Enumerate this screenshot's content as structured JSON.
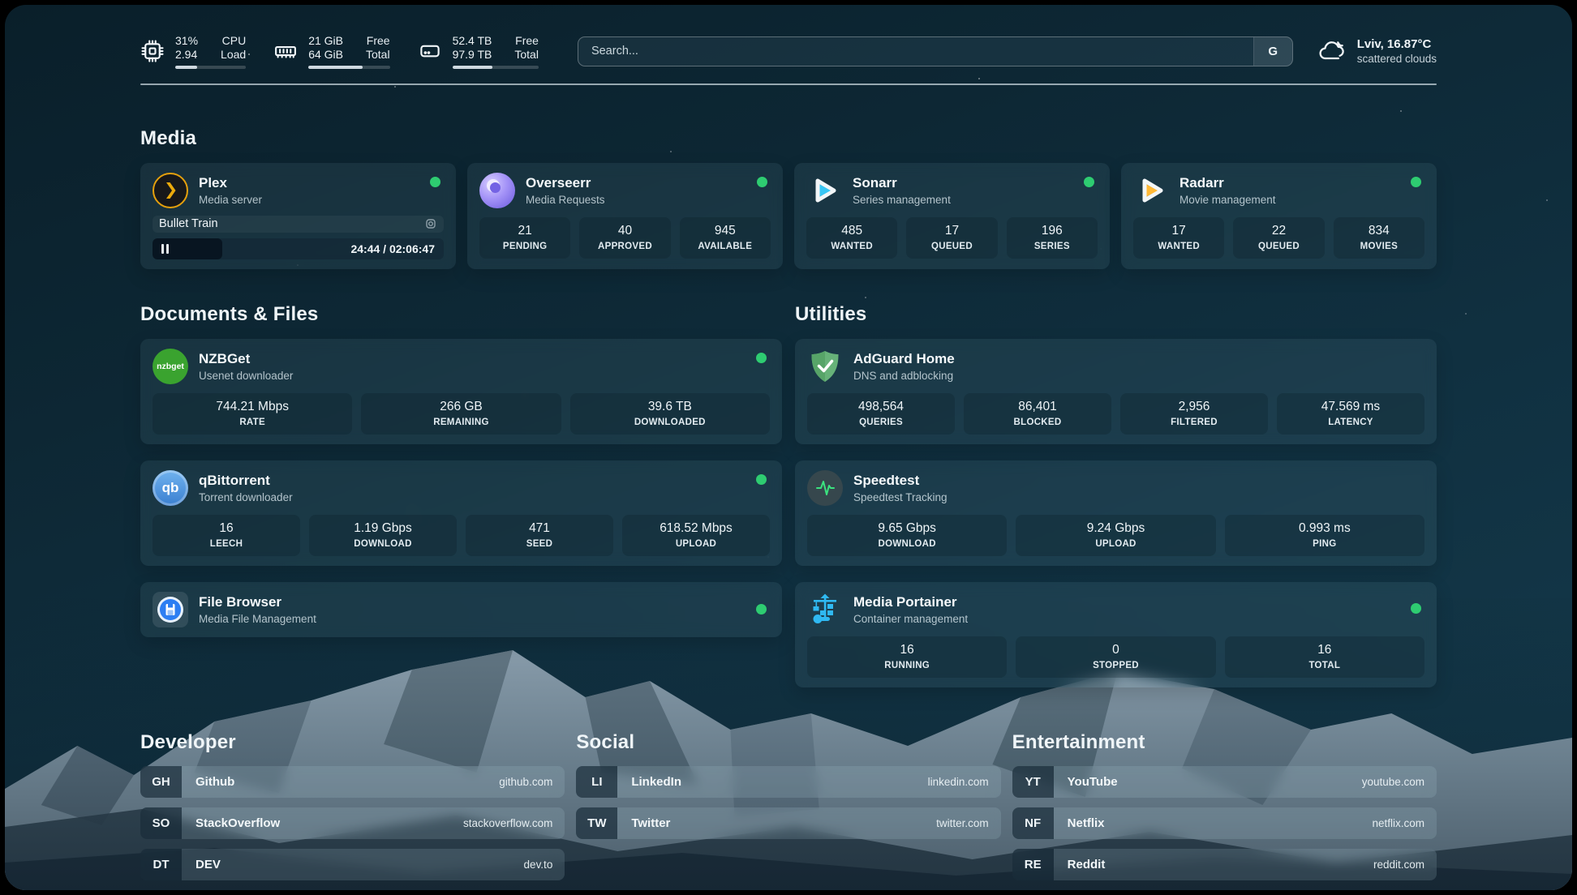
{
  "header": {
    "stats": [
      {
        "icon": "cpu-icon",
        "value1": "31%",
        "value2": "2.94",
        "label1": "CPU",
        "label2": "Load",
        "progress_pct": 31
      },
      {
        "icon": "memory-icon",
        "value1": "21 GiB",
        "value2": "64 GiB",
        "label1": "Free",
        "label2": "Total",
        "progress_pct": 67
      },
      {
        "icon": "disk-icon",
        "value1": "52.4 TB",
        "value2": "97.9 TB",
        "label1": "Free",
        "label2": "Total",
        "progress_pct": 46
      }
    ],
    "search": {
      "placeholder": "Search...",
      "engine_button": "G"
    },
    "weather": {
      "location_temp": "Lviv, 16.87°C",
      "condition": "scattered clouds"
    }
  },
  "colors": {
    "status_online": "#2ecc71",
    "accent_plex": "#e5a00d"
  },
  "sections": {
    "media": {
      "title": "Media",
      "apps": [
        {
          "name": "Plex",
          "description": "Media server",
          "status": "online",
          "now_playing": {
            "title": "Bullet Train",
            "state": "paused",
            "time": "24:44 / 02:06:47"
          }
        },
        {
          "name": "Overseerr",
          "description": "Media Requests",
          "status": "online",
          "stats": [
            {
              "value": "21",
              "label": "PENDING"
            },
            {
              "value": "40",
              "label": "APPROVED"
            },
            {
              "value": "945",
              "label": "AVAILABLE"
            }
          ]
        },
        {
          "name": "Sonarr",
          "description": "Series management",
          "status": "online",
          "stats": [
            {
              "value": "485",
              "label": "WANTED"
            },
            {
              "value": "17",
              "label": "QUEUED"
            },
            {
              "value": "196",
              "label": "SERIES"
            }
          ]
        },
        {
          "name": "Radarr",
          "description": "Movie management",
          "status": "online",
          "stats": [
            {
              "value": "17",
              "label": "WANTED"
            },
            {
              "value": "22",
              "label": "QUEUED"
            },
            {
              "value": "834",
              "label": "MOVIES"
            }
          ]
        }
      ]
    },
    "documents": {
      "title": "Documents & Files",
      "apps": [
        {
          "name": "NZBGet",
          "description": "Usenet downloader",
          "status": "online",
          "stats": [
            {
              "value": "744.21 Mbps",
              "label": "RATE"
            },
            {
              "value": "266 GB",
              "label": "REMAINING"
            },
            {
              "value": "39.6 TB",
              "label": "DOWNLOADED"
            }
          ]
        },
        {
          "name": "qBittorrent",
          "description": "Torrent downloader",
          "status": "online",
          "stats": [
            {
              "value": "16",
              "label": "LEECH"
            },
            {
              "value": "1.19 Gbps",
              "label": "DOWNLOAD"
            },
            {
              "value": "471",
              "label": "SEED"
            },
            {
              "value": "618.52 Mbps",
              "label": "UPLOAD"
            }
          ]
        },
        {
          "name": "File Browser",
          "description": "Media File Management",
          "status": "online"
        }
      ]
    },
    "utilities": {
      "title": "Utilities",
      "apps": [
        {
          "name": "AdGuard Home",
          "description": "DNS and adblocking",
          "stats": [
            {
              "value": "498,564",
              "label": "QUERIES"
            },
            {
              "value": "86,401",
              "label": "BLOCKED"
            },
            {
              "value": "2,956",
              "label": "FILTERED"
            },
            {
              "value": "47.569 ms",
              "label": "LATENCY"
            }
          ]
        },
        {
          "name": "Speedtest",
          "description": "Speedtest Tracking",
          "stats": [
            {
              "value": "9.65 Gbps",
              "label": "DOWNLOAD"
            },
            {
              "value": "9.24 Gbps",
              "label": "UPLOAD"
            },
            {
              "value": "0.993 ms",
              "label": "PING"
            }
          ]
        },
        {
          "name": "Media Portainer",
          "description": "Container management",
          "status": "online",
          "stats": [
            {
              "value": "16",
              "label": "RUNNING"
            },
            {
              "value": "0",
              "label": "STOPPED"
            },
            {
              "value": "16",
              "label": "TOTAL"
            }
          ]
        }
      ]
    },
    "developer": {
      "title": "Developer",
      "links": [
        {
          "abbr": "GH",
          "name": "Github",
          "url": "github.com"
        },
        {
          "abbr": "SO",
          "name": "StackOverflow",
          "url": "stackoverflow.com"
        },
        {
          "abbr": "DT",
          "name": "DEV",
          "url": "dev.to"
        }
      ]
    },
    "social": {
      "title": "Social",
      "links": [
        {
          "abbr": "LI",
          "name": "LinkedIn",
          "url": "linkedin.com"
        },
        {
          "abbr": "TW",
          "name": "Twitter",
          "url": "twitter.com"
        }
      ]
    },
    "entertainment": {
      "title": "Entertainment",
      "links": [
        {
          "abbr": "YT",
          "name": "YouTube",
          "url": "youtube.com"
        },
        {
          "abbr": "NF",
          "name": "Netflix",
          "url": "netflix.com"
        },
        {
          "abbr": "RE",
          "name": "Reddit",
          "url": "reddit.com"
        }
      ]
    }
  }
}
